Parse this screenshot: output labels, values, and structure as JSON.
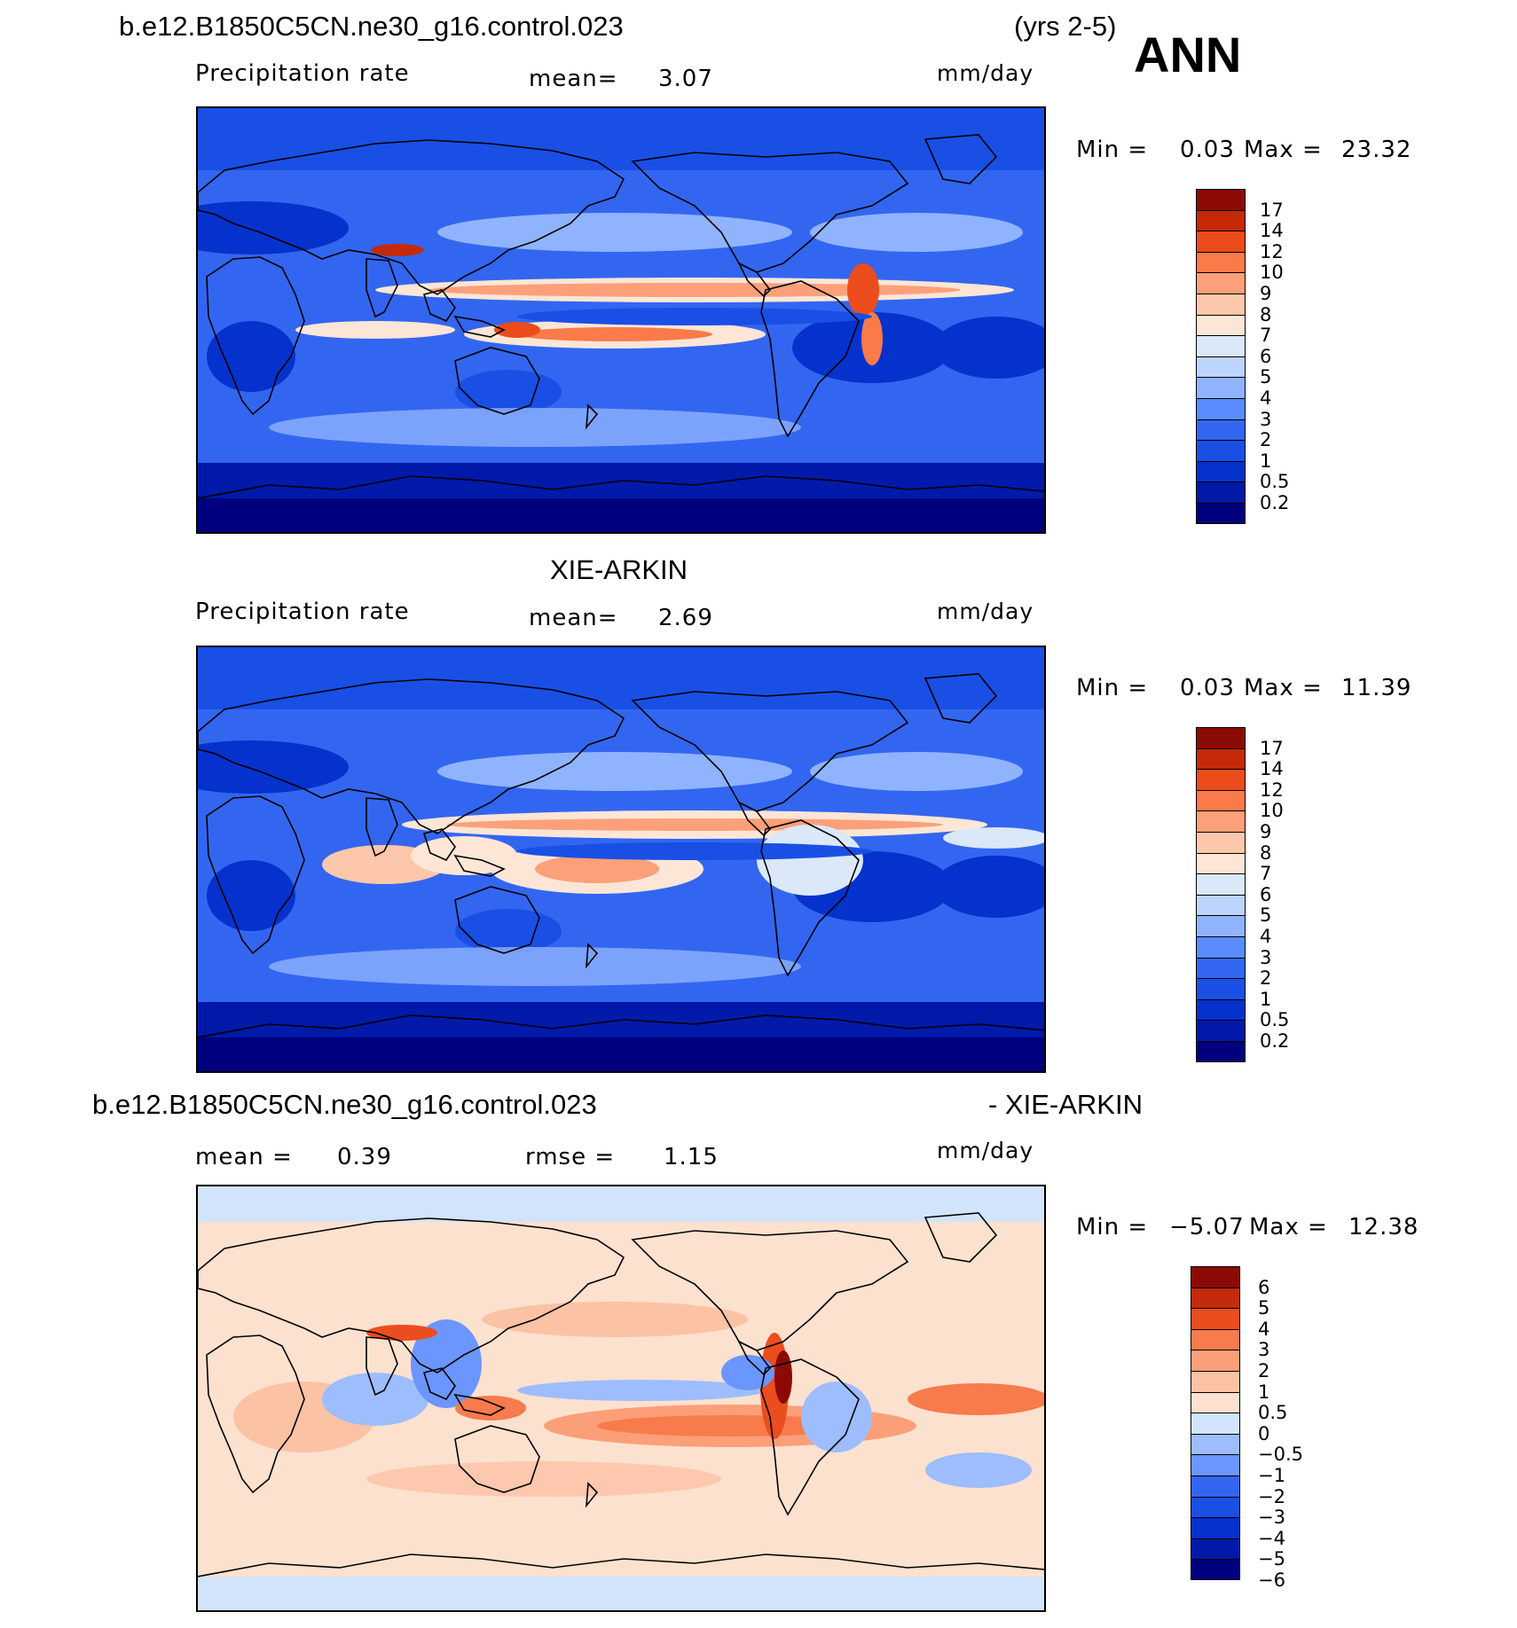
{
  "header": {
    "case_name": "b.e12.B1850C5CN.ne30_g16.control.023",
    "years": "(yrs 2-5)",
    "season": "ANN"
  },
  "panels": [
    {
      "id": "model",
      "variable": "Precipitation rate",
      "mean_label": "mean=",
      "mean_value": "3.07",
      "units": "mm/day",
      "min_label": "Min =",
      "min_value": "0.03",
      "max_label": "Max =",
      "max_value": "23.32",
      "colorbar_labels": [
        "17",
        "14",
        "12",
        "10",
        "9",
        "8",
        "7",
        "6",
        "5",
        "4",
        "3",
        "2",
        "1",
        "0.5",
        "0.2"
      ]
    },
    {
      "id": "obs",
      "title": "XIE-ARKIN",
      "variable": "Precipitation rate",
      "mean_label": "mean=",
      "mean_value": "2.69",
      "units": "mm/day",
      "min_label": "Min =",
      "min_value": "0.03",
      "max_label": "Max =",
      "max_value": "11.39",
      "colorbar_labels": [
        "17",
        "14",
        "12",
        "10",
        "9",
        "8",
        "7",
        "6",
        "5",
        "4",
        "3",
        "2",
        "1",
        "0.5",
        "0.2"
      ]
    },
    {
      "id": "diff",
      "title_left": "b.e12.B1850C5CN.ne30_g16.control.023",
      "title_right": "- XIE-ARKIN",
      "mean_label": "mean =",
      "mean_value": "0.39",
      "rmse_label": "rmse =",
      "rmse_value": "1.15",
      "units": "mm/day",
      "min_label": "Min =",
      "min_value": "−5.07",
      "max_label": "Max =",
      "max_value": "12.38",
      "colorbar_labels": [
        "6",
        "5",
        "4",
        "3",
        "2",
        "1",
        "0.5",
        "0",
        "−0.5",
        "−1",
        "−2",
        "−3",
        "−4",
        "−5",
        "−6"
      ]
    }
  ],
  "colors": {
    "precip_scale": [
      "#00007f",
      "#0019a8",
      "#0532cc",
      "#1a4fe6",
      "#3366f0",
      "#5a8cff",
      "#8fb3ff",
      "#bcd4ff",
      "#dbe8fa",
      "#fde6d6",
      "#fdc7ab",
      "#fca07a",
      "#fa7a4a",
      "#ec4c1c",
      "#c42a08",
      "#8c0a04"
    ],
    "diff_scale": [
      "#00007f",
      "#0019a8",
      "#0532cc",
      "#1a4fe6",
      "#3366f0",
      "#6b96ff",
      "#9dbdff",
      "#d2e4fb",
      "#fde1cf",
      "#fcc2a4",
      "#fb9f78",
      "#f77b4c",
      "#ec4d1e",
      "#c32b0c",
      "#8c0a04"
    ]
  }
}
